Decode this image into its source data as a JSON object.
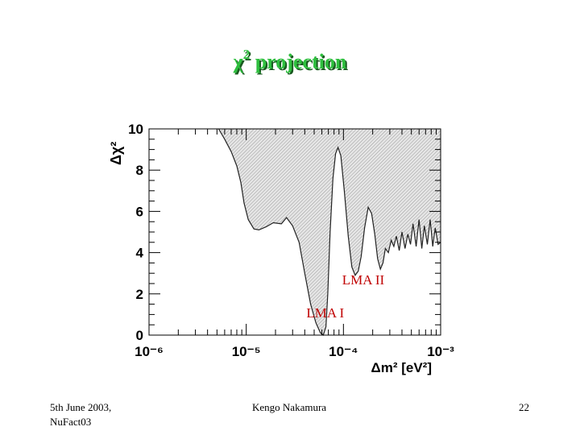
{
  "slide": {
    "title_symbol": "χ",
    "title_power": "2",
    "title_word": "projection"
  },
  "footer": {
    "date": "5th June 2003,",
    "event": "NuFact03",
    "author": "Kengo Nakamura",
    "page": "22"
  },
  "colors": {
    "title": "#2fbf3f",
    "annotation": "#c00000",
    "fill": "#d9d9d9"
  },
  "chart_data": {
    "type": "area",
    "xlabel": "Δm² [eV²]",
    "ylabel": "Δχ²",
    "xscale": "log",
    "xlim": [
      1e-06,
      0.001
    ],
    "ylim": [
      0,
      10
    ],
    "xticks": [
      {
        "value": 1e-06,
        "label": "10⁻⁶"
      },
      {
        "value": 1e-05,
        "label": "10⁻⁵"
      },
      {
        "value": 0.0001,
        "label": "10⁻⁴"
      },
      {
        "value": 0.001,
        "label": "10⁻³"
      }
    ],
    "yticks": [
      0,
      2,
      4,
      6,
      8,
      10
    ],
    "fill_above_curve": true,
    "series": [
      {
        "x": [
          5.2e-06,
          6e-06,
          7e-06,
          8e-06,
          8.8e-06,
          9.5e-06,
          1.05e-05,
          1.2e-05,
          1.35e-05,
          1.6e-05,
          1.9e-05,
          2.3e-05,
          2.6e-05,
          3e-05,
          3.5e-05,
          4e-05,
          4.6e-05,
          5.2e-05,
          5.8e-05,
          6.2e-05,
          6.6e-05,
          6.9e-05,
          7.3e-05,
          7.8e-05,
          8.3e-05,
          8.8e-05,
          9.4e-05,
          0.000102,
          0.000112,
          0.000122,
          0.000132,
          0.000142,
          0.000152,
          0.000165,
          0.00018,
          0.000195,
          0.00021,
          0.000225,
          0.00024,
          0.000255,
          0.00027,
          0.00029,
          0.00031,
          0.00033,
          0.00035,
          0.000375,
          0.0004,
          0.00043,
          0.00046,
          0.00049,
          0.00052,
          0.00056,
          0.0006,
          0.00064,
          0.00068,
          0.00073,
          0.00078,
          0.00083,
          0.00088,
          0.00094,
          0.001
        ],
        "y": [
          10,
          9.5,
          8.9,
          8.2,
          7.4,
          6.4,
          5.6,
          5.15,
          5.1,
          5.25,
          5.45,
          5.4,
          5.7,
          5.3,
          4.5,
          3.0,
          1.5,
          0.6,
          0.1,
          0.0,
          0.4,
          2.0,
          5.0,
          7.6,
          8.8,
          9.1,
          8.7,
          7.0,
          4.8,
          3.3,
          2.9,
          3.1,
          3.8,
          5.2,
          6.2,
          5.9,
          4.9,
          3.7,
          3.2,
          3.5,
          4.2,
          4.0,
          4.6,
          4.3,
          4.8,
          4.1,
          5.0,
          4.2,
          4.9,
          4.4,
          5.4,
          4.3,
          5.6,
          4.2,
          5.3,
          4.4,
          5.6,
          4.3,
          5.2,
          4.4,
          4.5
        ]
      }
    ],
    "annotations": [
      {
        "text": "LMA I",
        "x": 6.5e-05,
        "y": 1.1
      },
      {
        "text": "LMA II",
        "x": 0.00016,
        "y": 2.7
      }
    ]
  }
}
